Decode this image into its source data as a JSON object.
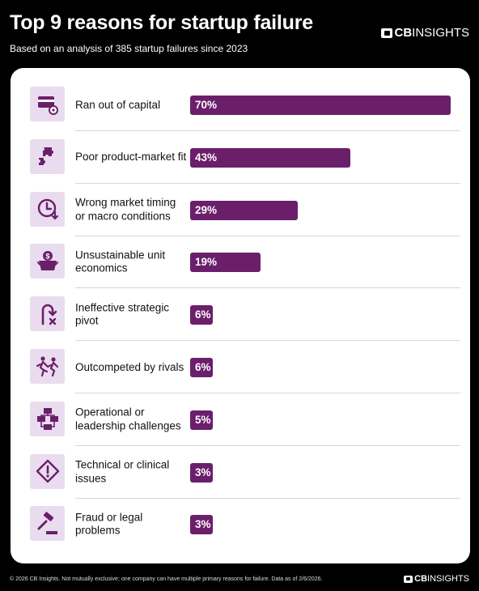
{
  "header": {
    "title": "Top 9 reasons for startup failure",
    "subtitle": "Based on an analysis of 385 startup failures since 2023"
  },
  "brand": {
    "logo_cb": "CB",
    "logo_text": "INSIGHTS"
  },
  "footer": {
    "note": "© 2026 CB Insights. Not mutually exclusive; one company can have multiple primary reasons for failure. Data as of 2/6/2026."
  },
  "colors": {
    "bar": "#6b1f6b",
    "icon_bg": "#eadcef",
    "icon_fg": "#6b1f6b"
  },
  "chart_data": {
    "type": "bar",
    "orientation": "horizontal",
    "title": "Top 9 reasons for startup failure",
    "subtitle": "Based on an analysis of 385 startup failures since 2023",
    "unit": "%",
    "xlim": [
      0,
      70
    ],
    "grid": false,
    "categories": [
      "Ran out of capital",
      "Poor product-market fit",
      "Wrong market timing or macro conditions",
      "Unsustainable unit economics",
      "Ineffective strategic pivot",
      "Outcompeted by rivals",
      "Operational or leadership challenges",
      "Technical or clinical issues",
      "Fraud or legal problems"
    ],
    "values": [
      70,
      43,
      29,
      19,
      6,
      6,
      5,
      3,
      3
    ],
    "value_labels": [
      "70%",
      "43%",
      "29%",
      "19%",
      "6%",
      "6%",
      "5%",
      "3%",
      "3%"
    ],
    "icons": [
      "money-card-icon",
      "puzzle-pieces-icon",
      "clock-down-icon",
      "money-bucket-icon",
      "pivot-arrow-icon",
      "running-rivals-icon",
      "org-chart-icon",
      "warning-sign-icon",
      "gavel-icon"
    ]
  }
}
